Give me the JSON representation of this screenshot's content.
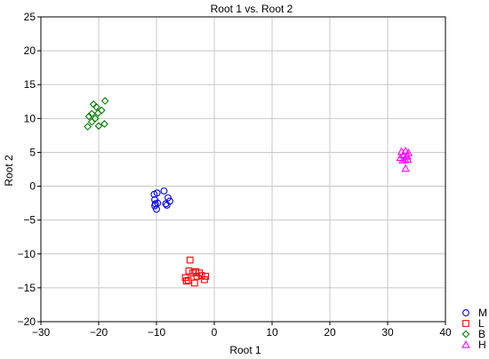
{
  "chart_data": {
    "type": "scatter",
    "title": "Root 1 vs. Root 2",
    "xlabel": "Root 1",
    "ylabel": "Root 2",
    "xlim": [
      -30,
      40
    ],
    "ylim": [
      -20,
      25
    ],
    "xticks": [
      "−30",
      "−20",
      "−10",
      "0",
      "10",
      "20",
      "30",
      "40"
    ],
    "yticks": [
      "−20",
      "−15",
      "−10",
      "−5",
      "0",
      "5",
      "10",
      "15",
      "20",
      "25"
    ],
    "grid": true,
    "legend_position": "bottom-right, outside plot",
    "series": [
      {
        "name": "M",
        "marker": "circle",
        "color": "#0000ff",
        "points": [
          [
            -10.4,
            -1.2
          ],
          [
            -9.9,
            -1.0
          ],
          [
            -8.7,
            -0.7
          ],
          [
            -10.3,
            -2.0
          ],
          [
            -9.8,
            -2.5
          ],
          [
            -10.3,
            -2.9
          ],
          [
            -10.0,
            -3.4
          ],
          [
            -8.2,
            -2.8
          ],
          [
            -7.7,
            -2.2
          ],
          [
            -8.4,
            -2.6
          ],
          [
            -8.0,
            -1.7
          ],
          [
            -10.2,
            -2.6
          ]
        ]
      },
      {
        "name": "L",
        "marker": "square",
        "color": "#ff0000",
        "points": [
          [
            -4.2,
            -10.9
          ],
          [
            -4.4,
            -12.5
          ],
          [
            -3.7,
            -12.8
          ],
          [
            -3.2,
            -12.6
          ],
          [
            -2.6,
            -12.8
          ],
          [
            -2.2,
            -13.2
          ],
          [
            -1.5,
            -13.3
          ],
          [
            -1.7,
            -13.8
          ],
          [
            -5.0,
            -13.5
          ],
          [
            -4.5,
            -13.9
          ],
          [
            -3.0,
            -13.3
          ],
          [
            -3.4,
            -14.3
          ],
          [
            -4.8,
            -14.0
          ]
        ]
      },
      {
        "name": "B",
        "marker": "diamond",
        "color": "#008000",
        "points": [
          [
            -20.9,
            12.1
          ],
          [
            -18.9,
            12.6
          ],
          [
            -20.4,
            11.7
          ],
          [
            -19.5,
            11.2
          ],
          [
            -21.2,
            10.7
          ],
          [
            -20.1,
            10.8
          ],
          [
            -21.7,
            10.3
          ],
          [
            -20.6,
            10.0
          ],
          [
            -21.2,
            9.5
          ],
          [
            -19.0,
            9.2
          ],
          [
            -20.0,
            8.9
          ],
          [
            -21.9,
            8.8
          ]
        ]
      },
      {
        "name": "H",
        "marker": "triangle",
        "color": "#ff00ff",
        "points": [
          [
            32.4,
            5.1
          ],
          [
            33.1,
            5.2
          ],
          [
            33.6,
            4.9
          ],
          [
            32.7,
            4.6
          ],
          [
            33.4,
            4.4
          ],
          [
            32.2,
            4.2
          ],
          [
            33.0,
            4.0
          ],
          [
            33.5,
            3.9
          ],
          [
            32.6,
            3.8
          ],
          [
            33.1,
            2.6
          ]
        ]
      }
    ]
  }
}
